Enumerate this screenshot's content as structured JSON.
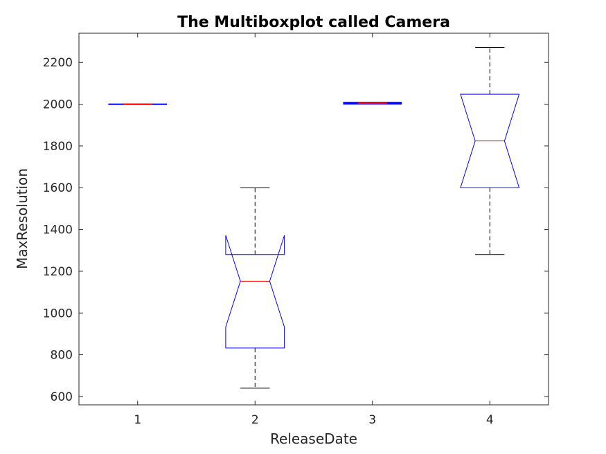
{
  "chart_data": {
    "type": "boxplot",
    "title": "The Multiboxplot called Camera",
    "xlabel": "ReleaseDate",
    "ylabel": "MaxResolution",
    "categories": [
      "1",
      "2",
      "3",
      "4"
    ],
    "ylim": [
      560,
      2340
    ],
    "yticks": [
      600,
      800,
      1000,
      1200,
      1400,
      1600,
      1800,
      2000,
      2200
    ],
    "grid": false,
    "notched": true,
    "boxes": [
      {
        "category": "1",
        "whisker_low": 2000,
        "q1": 2000,
        "median": 2000,
        "q3": 2000,
        "whisker_high": 2000,
        "notch_low": 2000,
        "notch_high": 2000
      },
      {
        "category": "2",
        "whisker_low": 640,
        "q1": 832,
        "median": 1152,
        "q3": 1280,
        "whisker_high": 1600,
        "notch_low": 933,
        "notch_high": 1372
      },
      {
        "category": "3",
        "whisker_low": 2002,
        "q1": 2002,
        "median": 2005,
        "q3": 2008,
        "whisker_high": 2008,
        "notch_low": 2002,
        "notch_high": 2008
      },
      {
        "category": "4",
        "whisker_low": 1280,
        "q1": 1600,
        "median": 1824,
        "q3": 2048,
        "whisker_high": 2272,
        "notch_low": 1600,
        "notch_high": 2048
      }
    ],
    "colors": {
      "box": "#0000ff",
      "median": "#ff0000",
      "whisker": "#000000",
      "axis": "#262626"
    }
  }
}
